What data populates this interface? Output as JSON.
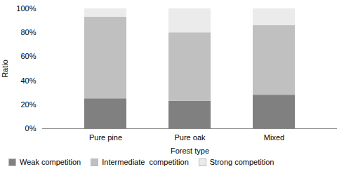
{
  "chart_data": {
    "type": "bar",
    "stacked": true,
    "xlabel": "Forest type",
    "ylabel": "Ratio",
    "categories": [
      "Pure pine",
      "Pure oak",
      "Mixed"
    ],
    "series": [
      {
        "name": "Weak competition",
        "color": "#808080",
        "values": [
          0.25,
          0.23,
          0.28
        ]
      },
      {
        "name": "Intermediate  competition",
        "color": "#c0c0c0",
        "values": [
          0.68,
          0.57,
          0.58
        ]
      },
      {
        "name": "Strong competition",
        "color": "#ebebeb",
        "values": [
          0.07,
          0.2,
          0.14
        ]
      }
    ],
    "ylim": [
      0,
      1.0
    ],
    "yticks": [
      {
        "value": 0.0,
        "label": "0%"
      },
      {
        "value": 0.2,
        "label": "20%"
      },
      {
        "value": 0.4,
        "label": "40%"
      },
      {
        "value": 0.6,
        "label": "60%"
      },
      {
        "value": 0.8,
        "label": "80%"
      },
      {
        "value": 1.0,
        "label": "100%"
      }
    ],
    "grid": false,
    "legend": "bottom"
  }
}
